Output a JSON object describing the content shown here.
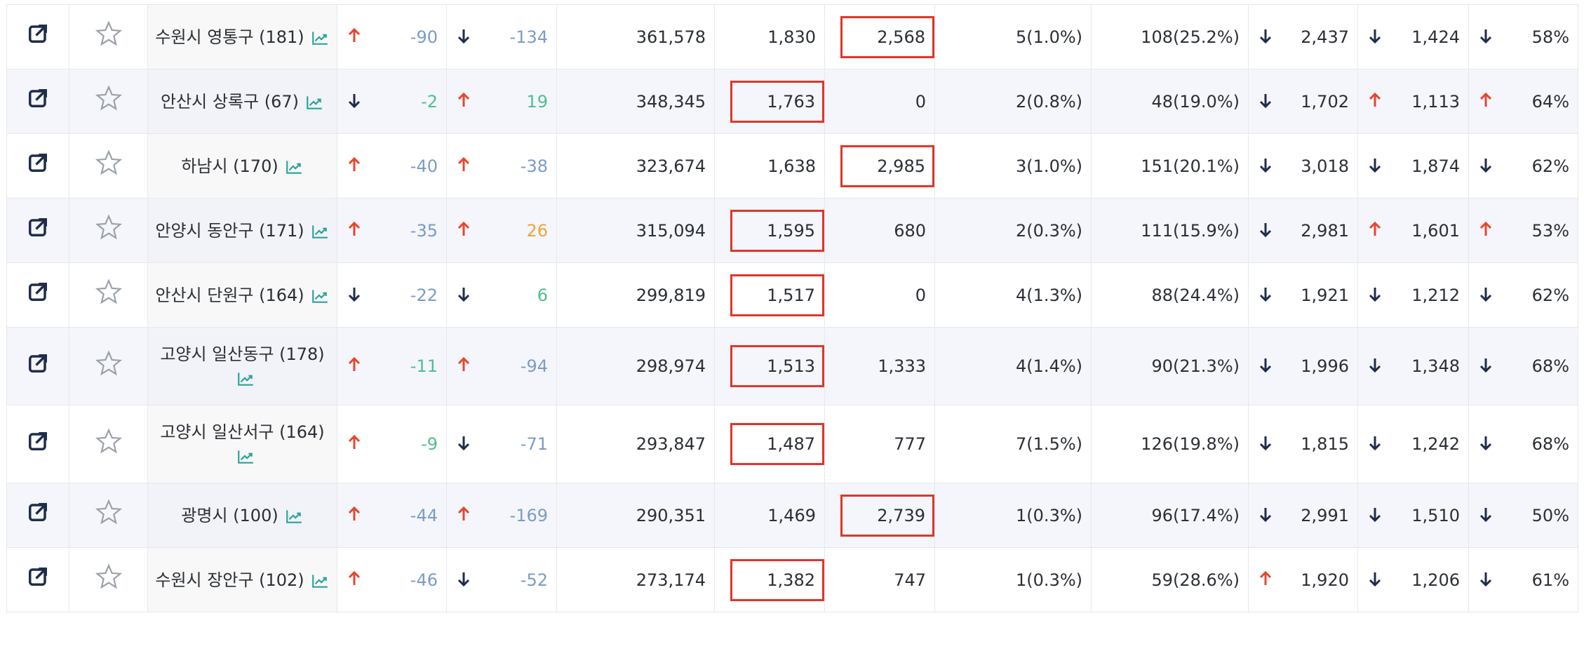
{
  "table": {
    "rows": [
      {
        "name": "수원시 영통구 (181)",
        "c1": {
          "dir": "up",
          "value": "-90",
          "color": "#7b9cc4"
        },
        "c2": {
          "dir": "down",
          "value": "-134",
          "color": "#7b9cc4"
        },
        "pop": "361,578",
        "a": "1,830",
        "b": "2,568",
        "boxed": "b",
        "c": "5(1.0%)",
        "d": "108(25.2%)",
        "t1": {
          "dir": "down",
          "value": "2,437"
        },
        "t2": {
          "dir": "down",
          "value": "1,424"
        },
        "t3": {
          "dir": "down",
          "value": "58%"
        }
      },
      {
        "name": "안산시 상록구 (67)",
        "c1": {
          "dir": "down",
          "value": "-2",
          "color": "#4fc08d"
        },
        "c2": {
          "dir": "up",
          "value": "19",
          "color": "#4fc08d"
        },
        "pop": "348,345",
        "a": "1,763",
        "b": "0",
        "boxed": "a",
        "c": "2(0.8%)",
        "d": "48(19.0%)",
        "t1": {
          "dir": "down",
          "value": "1,702"
        },
        "t2": {
          "dir": "up",
          "value": "1,113"
        },
        "t3": {
          "dir": "up",
          "value": "64%"
        }
      },
      {
        "name": "하남시 (170)",
        "c1": {
          "dir": "up",
          "value": "-40",
          "color": "#7b9cc4"
        },
        "c2": {
          "dir": "up",
          "value": "-38",
          "color": "#7b9cc4"
        },
        "pop": "323,674",
        "a": "1,638",
        "b": "2,985",
        "boxed": "b",
        "c": "3(1.0%)",
        "d": "151(20.1%)",
        "t1": {
          "dir": "down",
          "value": "3,018"
        },
        "t2": {
          "dir": "down",
          "value": "1,874"
        },
        "t3": {
          "dir": "down",
          "value": "62%"
        }
      },
      {
        "name": "안양시 동안구 (171)",
        "c1": {
          "dir": "up",
          "value": "-35",
          "color": "#7b9cc4"
        },
        "c2": {
          "dir": "up",
          "value": "26",
          "color": "#f0a43a"
        },
        "pop": "315,094",
        "a": "1,595",
        "b": "680",
        "boxed": "a",
        "c": "2(0.3%)",
        "d": "111(15.9%)",
        "t1": {
          "dir": "down",
          "value": "2,981"
        },
        "t2": {
          "dir": "up",
          "value": "1,601"
        },
        "t3": {
          "dir": "up",
          "value": "53%"
        }
      },
      {
        "name": "안산시 단원구 (164)",
        "c1": {
          "dir": "down",
          "value": "-22",
          "color": "#7b9cc4"
        },
        "c2": {
          "dir": "down",
          "value": "6",
          "color": "#4fc08d"
        },
        "pop": "299,819",
        "a": "1,517",
        "b": "0",
        "boxed": "a",
        "c": "4(1.3%)",
        "d": "88(24.4%)",
        "t1": {
          "dir": "down",
          "value": "1,921"
        },
        "t2": {
          "dir": "down",
          "value": "1,212"
        },
        "t3": {
          "dir": "down",
          "value": "62%"
        }
      },
      {
        "name": "고양시 일산동구 (178)",
        "c1": {
          "dir": "up",
          "value": "-11",
          "color": "#4fc08d"
        },
        "c2": {
          "dir": "up",
          "value": "-94",
          "color": "#7b9cc4"
        },
        "pop": "298,974",
        "a": "1,513",
        "b": "1,333",
        "boxed": "a",
        "c": "4(1.4%)",
        "d": "90(21.3%)",
        "t1": {
          "dir": "down",
          "value": "1,996"
        },
        "t2": {
          "dir": "down",
          "value": "1,348"
        },
        "t3": {
          "dir": "down",
          "value": "68%"
        }
      },
      {
        "name": "고양시 일산서구 (164)",
        "c1": {
          "dir": "up",
          "value": "-9",
          "color": "#4fc08d"
        },
        "c2": {
          "dir": "down",
          "value": "-71",
          "color": "#7b9cc4"
        },
        "pop": "293,847",
        "a": "1,487",
        "b": "777",
        "boxed": "a",
        "c": "7(1.5%)",
        "d": "126(19.8%)",
        "t1": {
          "dir": "down",
          "value": "1,815"
        },
        "t2": {
          "dir": "down",
          "value": "1,242"
        },
        "t3": {
          "dir": "down",
          "value": "68%"
        }
      },
      {
        "name": "광명시 (100)",
        "c1": {
          "dir": "up",
          "value": "-44",
          "color": "#7b9cc4"
        },
        "c2": {
          "dir": "up",
          "value": "-169",
          "color": "#7b9cc4"
        },
        "pop": "290,351",
        "a": "1,469",
        "b": "2,739",
        "boxed": "b",
        "c": "1(0.3%)",
        "d": "96(17.4%)",
        "t1": {
          "dir": "down",
          "value": "2,991"
        },
        "t2": {
          "dir": "down",
          "value": "1,510"
        },
        "t3": {
          "dir": "down",
          "value": "50%"
        }
      },
      {
        "name": "수원시 장안구 (102)",
        "c1": {
          "dir": "up",
          "value": "-46",
          "color": "#7b9cc4"
        },
        "c2": {
          "dir": "down",
          "value": "-52",
          "color": "#7b9cc4"
        },
        "pop": "273,174",
        "a": "1,382",
        "b": "747",
        "boxed": "a",
        "c": "1(0.3%)",
        "d": "59(28.6%)",
        "t1": {
          "dir": "up",
          "value": "1,920"
        },
        "t2": {
          "dir": "down",
          "value": "1,206"
        },
        "t3": {
          "dir": "down",
          "value": "61%"
        }
      }
    ]
  }
}
